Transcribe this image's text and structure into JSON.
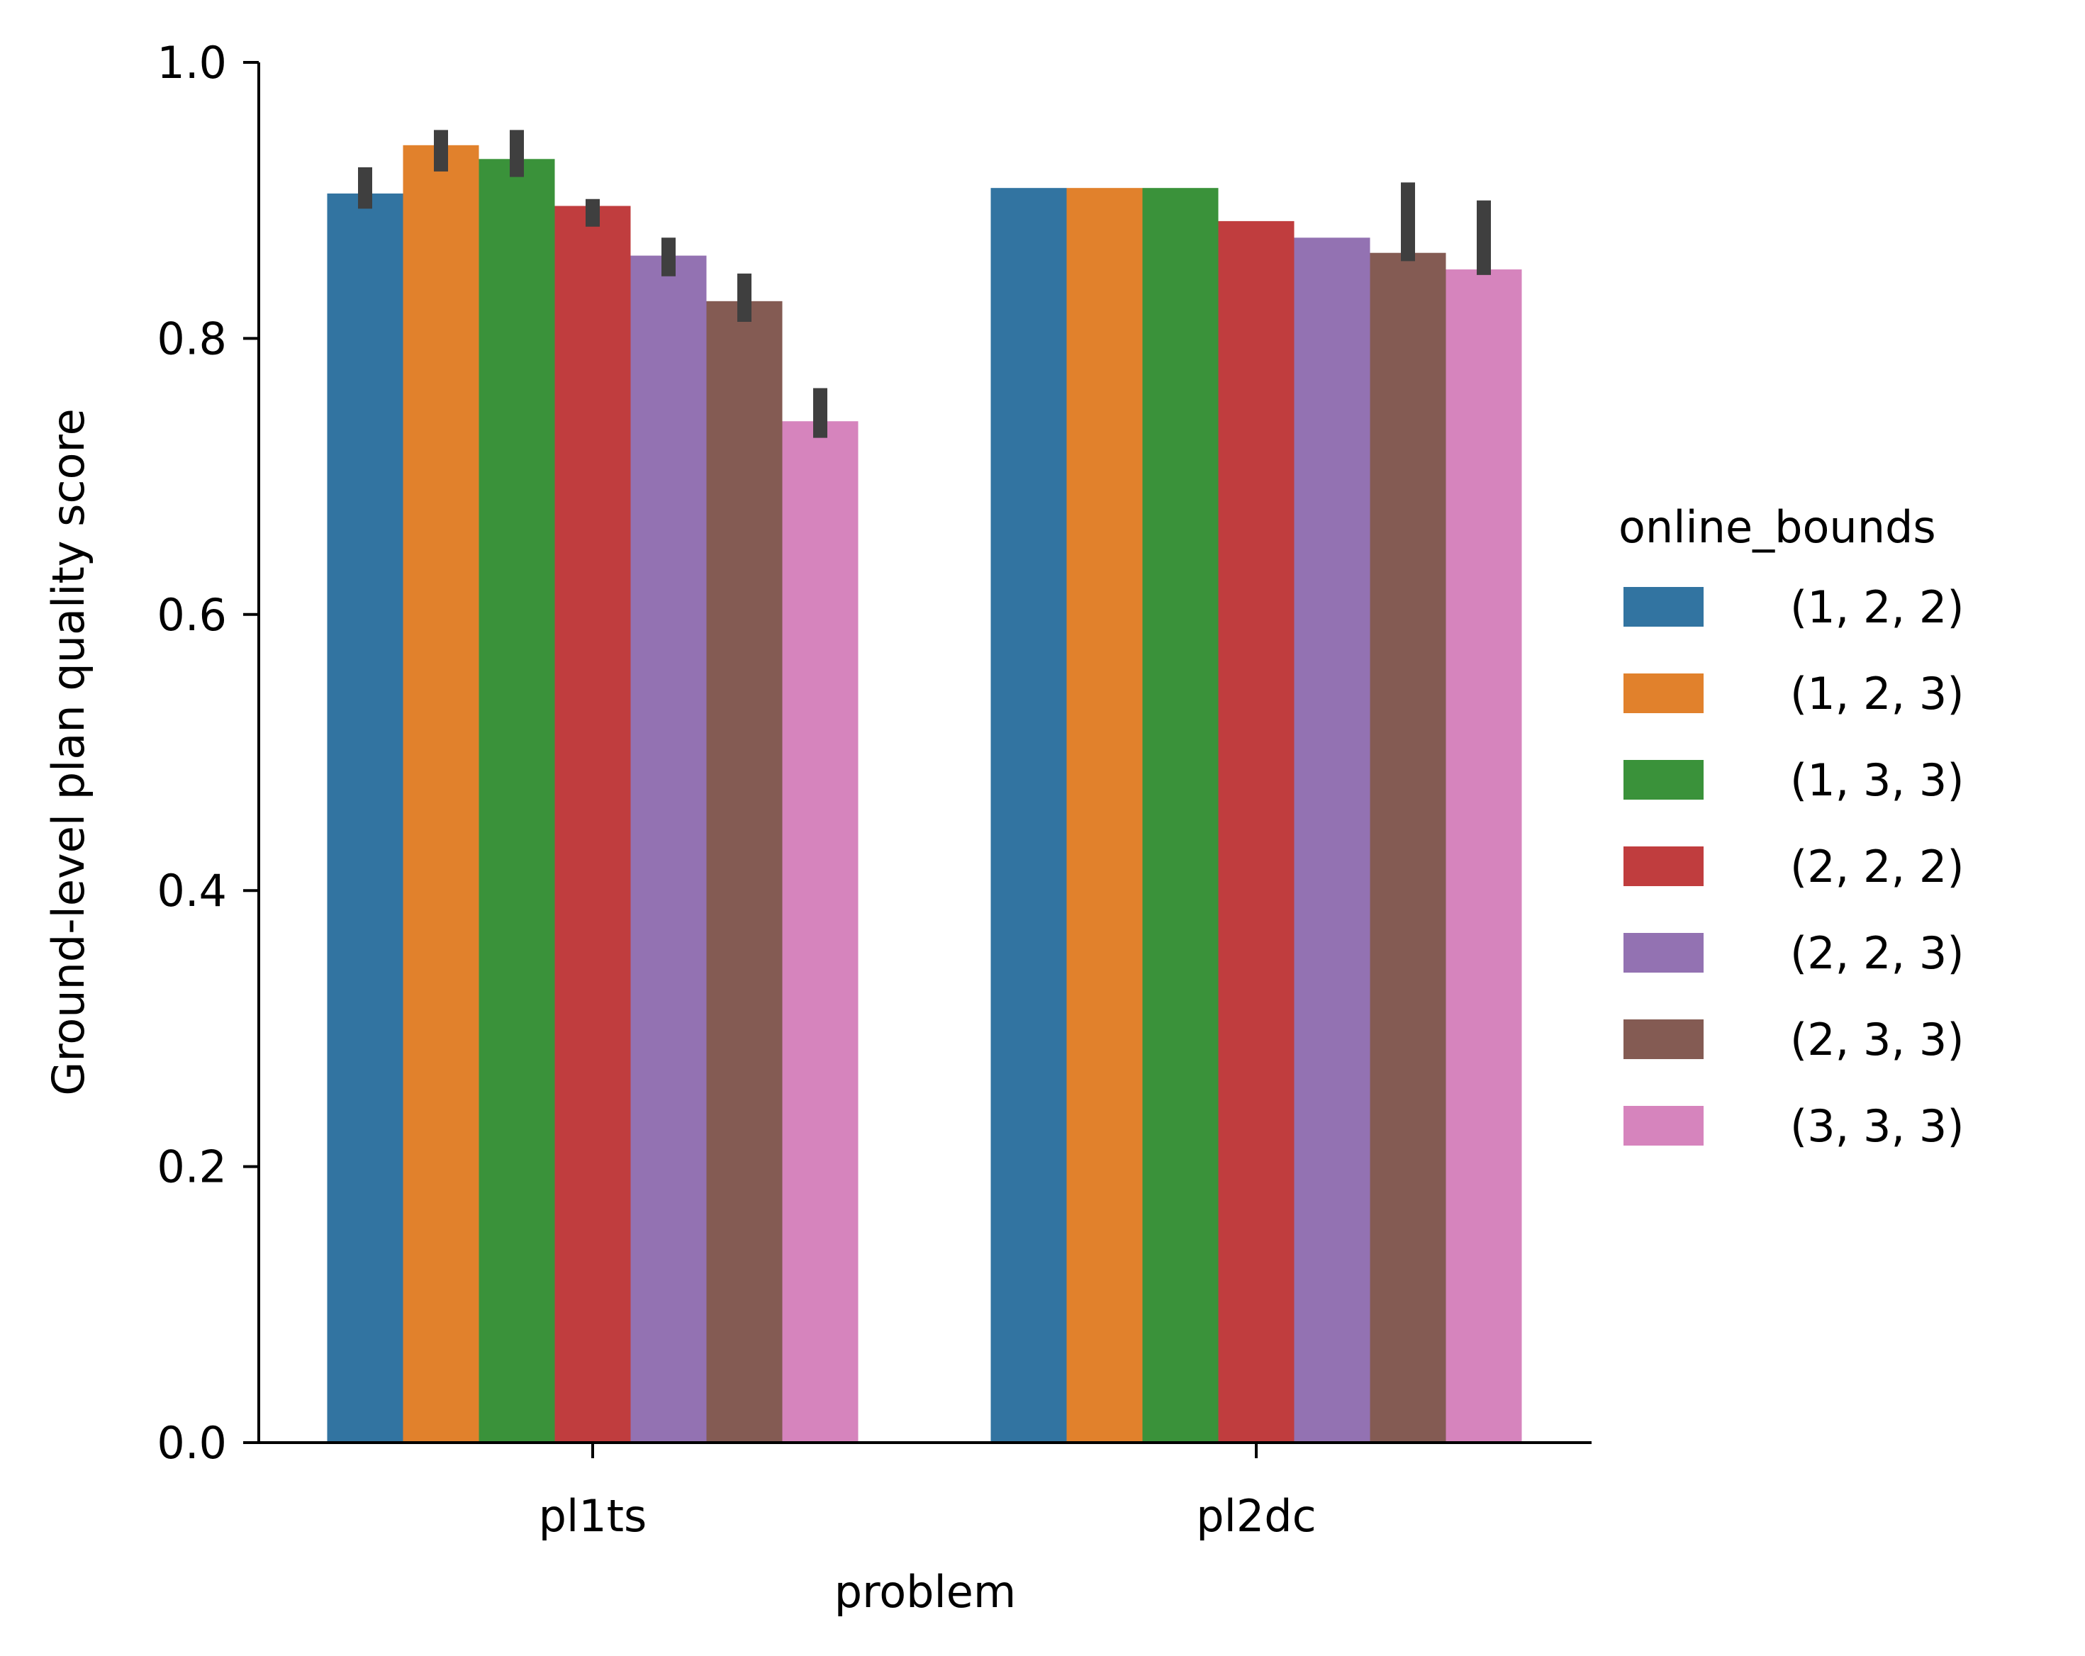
{
  "chart_data": {
    "type": "bar",
    "xlabel": "problem",
    "ylabel": "Ground-level plan quality score",
    "ylim": [
      0,
      1
    ],
    "yticks": [
      "0.0",
      "0.2",
      "0.4",
      "0.6",
      "0.8",
      "1.0"
    ],
    "categories": [
      "pl1ts",
      "pl2dc"
    ],
    "legend": {
      "title": "online_bounds",
      "placement": "right"
    },
    "series": [
      {
        "name": "(1, 2, 2)",
        "color": "#3274a1",
        "values": [
          0.905,
          0.909
        ],
        "ci": [
          [
            0.894,
            0.924
          ],
          null
        ]
      },
      {
        "name": "(1, 2, 3)",
        "color": "#e1812c",
        "values": [
          0.94,
          0.909
        ],
        "ci": [
          [
            0.921,
            0.951
          ],
          null
        ]
      },
      {
        "name": "(1, 3, 3)",
        "color": "#3a923a",
        "values": [
          0.93,
          0.909
        ],
        "ci": [
          [
            0.917,
            0.951
          ],
          null
        ]
      },
      {
        "name": "(2, 2, 2)",
        "color": "#c03d3e",
        "values": [
          0.896,
          0.885
        ],
        "ci": [
          [
            0.881,
            0.901
          ],
          null
        ]
      },
      {
        "name": "(2, 2, 3)",
        "color": "#9372b2",
        "values": [
          0.86,
          0.873
        ],
        "ci": [
          [
            0.845,
            0.873
          ],
          null
        ]
      },
      {
        "name": "(2, 3, 3)",
        "color": "#845b53",
        "values": [
          0.827,
          0.862
        ],
        "ci": [
          [
            0.812,
            0.847
          ],
          [
            0.856,
            0.913
          ]
        ]
      },
      {
        "name": "(3, 3, 3)",
        "color": "#d684bd",
        "values": [
          0.74,
          0.85
        ],
        "ci": [
          [
            0.728,
            0.764
          ],
          [
            0.846,
            0.9
          ]
        ]
      }
    ]
  }
}
